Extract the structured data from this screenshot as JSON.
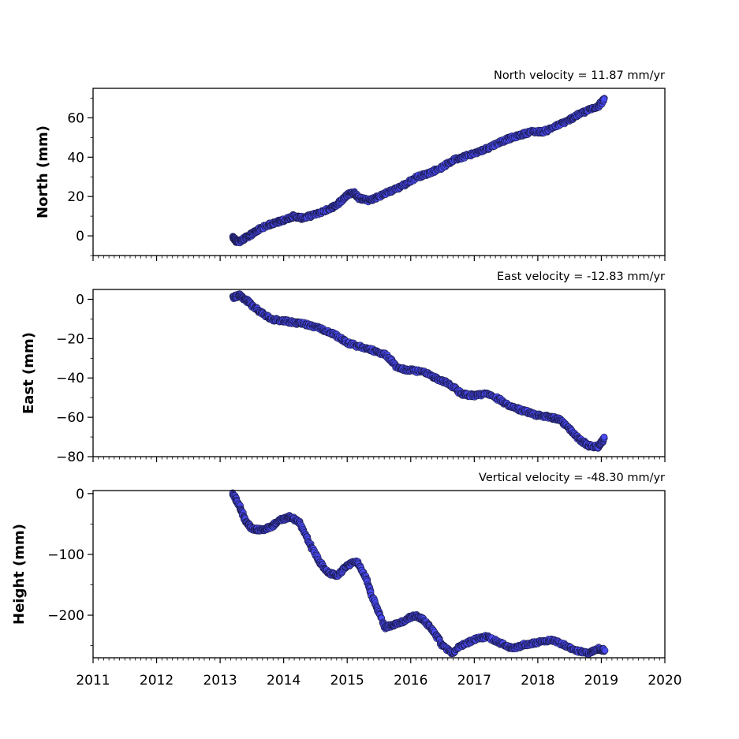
{
  "chart_data": [
    {
      "type": "scatter",
      "title": "North velocity = 11.87 mm/yr",
      "ylabel": "North (mm)",
      "xlim": [
        2011,
        2020
      ],
      "ylim": [
        -10,
        75
      ],
      "yticks": [
        0,
        20,
        40,
        60
      ],
      "xticks": [
        2011,
        2012,
        2013,
        2014,
        2015,
        2016,
        2017,
        2018,
        2019,
        2020
      ],
      "show_xtick_labels": false,
      "marker_color": "#4a4af2",
      "marker_edge": "#1a1a4a",
      "series": [
        {
          "x": [
            2013.2,
            2013.25,
            2013.3,
            2013.4,
            2013.5,
            2013.6,
            2013.75,
            2013.9,
            2014.0,
            2014.15,
            2014.3,
            2014.5,
            2014.7,
            2014.85,
            2015.0,
            2015.1,
            2015.2,
            2015.35,
            2015.5,
            2015.7,
            2015.9,
            2016.1,
            2016.3,
            2016.5,
            2016.7,
            2016.9,
            2017.1,
            2017.3,
            2017.5,
            2017.7,
            2017.9,
            2018.1,
            2018.3,
            2018.5,
            2018.6,
            2018.8,
            2018.95,
            2019.05
          ],
          "y": [
            -1,
            -2.5,
            -3,
            -1,
            1,
            3,
            5.5,
            7,
            8,
            10,
            9,
            11,
            13.5,
            16,
            21,
            22,
            19,
            18,
            20,
            23,
            26,
            30,
            32,
            35,
            39,
            41,
            43,
            46,
            49,
            51,
            53,
            53,
            56,
            59,
            61,
            64,
            66,
            69.5
          ]
        }
      ]
    },
    {
      "type": "scatter",
      "title": "East velocity = -12.83 mm/yr",
      "ylabel": "East (mm)",
      "xlim": [
        2011,
        2020
      ],
      "ylim": [
        -80,
        5
      ],
      "yticks": [
        0,
        -20,
        -40,
        -60,
        -80
      ],
      "xticks": [
        2011,
        2012,
        2013,
        2014,
        2015,
        2016,
        2017,
        2018,
        2019,
        2020
      ],
      "show_xtick_labels": false,
      "marker_color": "#4a4af2",
      "marker_edge": "#1a1a4a",
      "series": [
        {
          "x": [
            2013.2,
            2013.3,
            2013.4,
            2013.5,
            2013.65,
            2013.8,
            2014.0,
            2014.2,
            2014.4,
            2014.6,
            2014.8,
            2015.0,
            2015.2,
            2015.4,
            2015.6,
            2015.8,
            2016.0,
            2016.2,
            2016.4,
            2016.6,
            2016.8,
            2017.0,
            2017.2,
            2017.4,
            2017.6,
            2017.8,
            2018.0,
            2018.2,
            2018.35,
            2018.5,
            2018.65,
            2018.8,
            2018.95,
            2019.05
          ],
          "y": [
            1,
            2,
            0,
            -3,
            -7,
            -10,
            -11,
            -12,
            -13,
            -15,
            -18,
            -22,
            -24,
            -26,
            -28,
            -35,
            -36,
            -37,
            -40,
            -43,
            -48,
            -49,
            -48,
            -51,
            -55,
            -57,
            -59,
            -60,
            -61,
            -66,
            -71,
            -74.5,
            -75,
            -70.5
          ]
        }
      ]
    },
    {
      "type": "scatter",
      "title": "Vertical velocity = -48.30 mm/yr",
      "ylabel": "Height (mm)",
      "xlim": [
        2011,
        2020
      ],
      "ylim": [
        -270,
        5
      ],
      "yticks": [
        0,
        -100,
        -200
      ],
      "xticks": [
        2011,
        2012,
        2013,
        2014,
        2015,
        2016,
        2017,
        2018,
        2019,
        2020
      ],
      "show_xtick_labels": true,
      "marker_color": "#4a4af2",
      "marker_edge": "#1a1a4a",
      "series": [
        {
          "x": [
            2013.2,
            2013.3,
            2013.4,
            2013.5,
            2013.65,
            2013.8,
            2013.95,
            2014.1,
            2014.25,
            2014.4,
            2014.55,
            2014.7,
            2014.85,
            2015.0,
            2015.15,
            2015.3,
            2015.45,
            2015.6,
            2015.75,
            2015.9,
            2016.05,
            2016.2,
            2016.35,
            2016.5,
            2016.65,
            2016.8,
            2017.0,
            2017.2,
            2017.4,
            2017.6,
            2017.8,
            2018.0,
            2018.2,
            2018.4,
            2018.6,
            2018.8,
            2018.95,
            2019.05
          ],
          "y": [
            0,
            -20,
            -45,
            -58,
            -60,
            -55,
            -43,
            -38,
            -48,
            -80,
            -110,
            -130,
            -135,
            -118,
            -112,
            -140,
            -185,
            -220,
            -215,
            -210,
            -200,
            -208,
            -225,
            -250,
            -262,
            -250,
            -240,
            -235,
            -245,
            -255,
            -248,
            -245,
            -240,
            -248,
            -258,
            -262,
            -255,
            -258
          ]
        }
      ]
    }
  ]
}
